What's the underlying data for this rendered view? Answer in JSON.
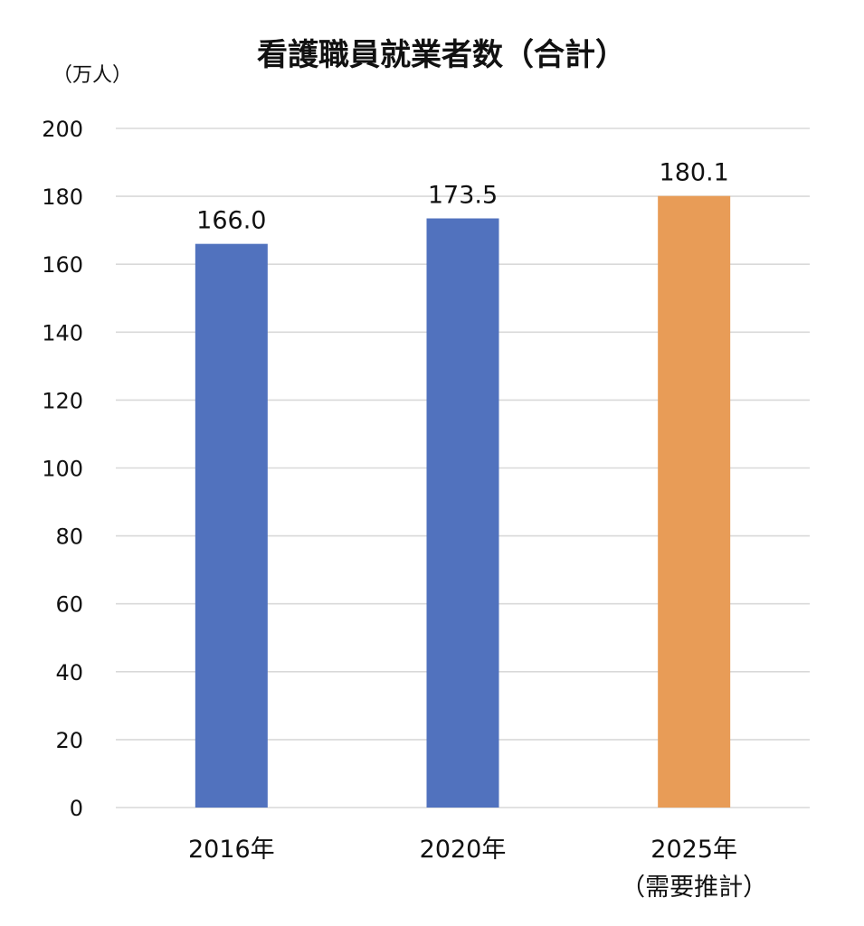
{
  "chart_data": {
    "type": "bar",
    "title": "看護職員就業者数（合計）",
    "unit_label": "（万人）",
    "categories": [
      "2016年",
      "2020年",
      "2025年"
    ],
    "category_notes": [
      "",
      "",
      "（需要推計）"
    ],
    "values": [
      166.0,
      173.5,
      180.1
    ],
    "data_labels": [
      "166.0",
      "173.5",
      "180.1"
    ],
    "bar_colors": [
      "#5172be",
      "#5172be",
      "#e89c57"
    ],
    "ylim": [
      0,
      200
    ],
    "y_ticks": [
      0,
      20,
      40,
      60,
      80,
      100,
      120,
      140,
      160,
      180,
      200
    ],
    "grid": true,
    "legend": "none",
    "xlabel": "",
    "ylabel": ""
  }
}
